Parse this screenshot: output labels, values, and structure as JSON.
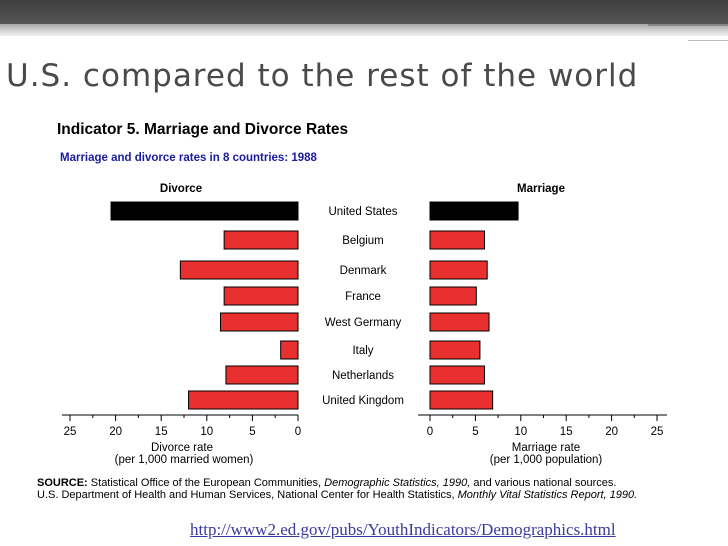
{
  "slide": {
    "title": "U.S. compared to the rest of the world",
    "link": "http://www2.ed.gov/pubs/YouthIndicators/Demographics.html"
  },
  "colors": {
    "us_bar": "#000000",
    "other_bars": "#e83030",
    "subtitle": "#1a1aa0",
    "title_text": "#4a4a4a"
  },
  "chart_data": {
    "type": "bar",
    "orientation": "horizontal-butterfly",
    "title": "Indicator 5. Marriage and Divorce Rates",
    "subtitle": "Marriage and divorce rates in 8 countries:  1988",
    "categories": [
      "United States",
      "Belgium",
      "Denmark",
      "France",
      "West Germany",
      "Italy",
      "Netherlands",
      "United Kingdom"
    ],
    "series": [
      {
        "name": "Divorce",
        "values": [
          20.5,
          8.1,
          12.9,
          8.1,
          8.5,
          1.9,
          7.9,
          12.0
        ],
        "xlabel": "Divorce rate",
        "xlabel_sub": "(per 1,000 married women)",
        "xlim": [
          25,
          0
        ],
        "ticks": [
          "25",
          "20",
          "15",
          "10",
          "5",
          "0"
        ],
        "direction": "left"
      },
      {
        "name": "Marriage",
        "values": [
          9.7,
          6.0,
          6.3,
          5.1,
          6.5,
          5.5,
          6.0,
          6.9
        ],
        "xlabel": "Marriage rate",
        "xlabel_sub": "(per 1,000 population)",
        "xlim": [
          0,
          25
        ],
        "ticks": [
          "0",
          "5",
          "10",
          "15",
          "20",
          "25"
        ],
        "direction": "right"
      }
    ],
    "source": {
      "label": "SOURCE:",
      "line1_a": "Statistical Office of the European Communities, ",
      "line1_b": "Demographic Statistics, 1990,",
      "line1_c": " and various national sources.",
      "line2_a": "U.S. Department of Health and Human Services, National Center for Health Statistics, ",
      "line2_b": "Monthly Vital Statistics Report, 1990."
    }
  }
}
